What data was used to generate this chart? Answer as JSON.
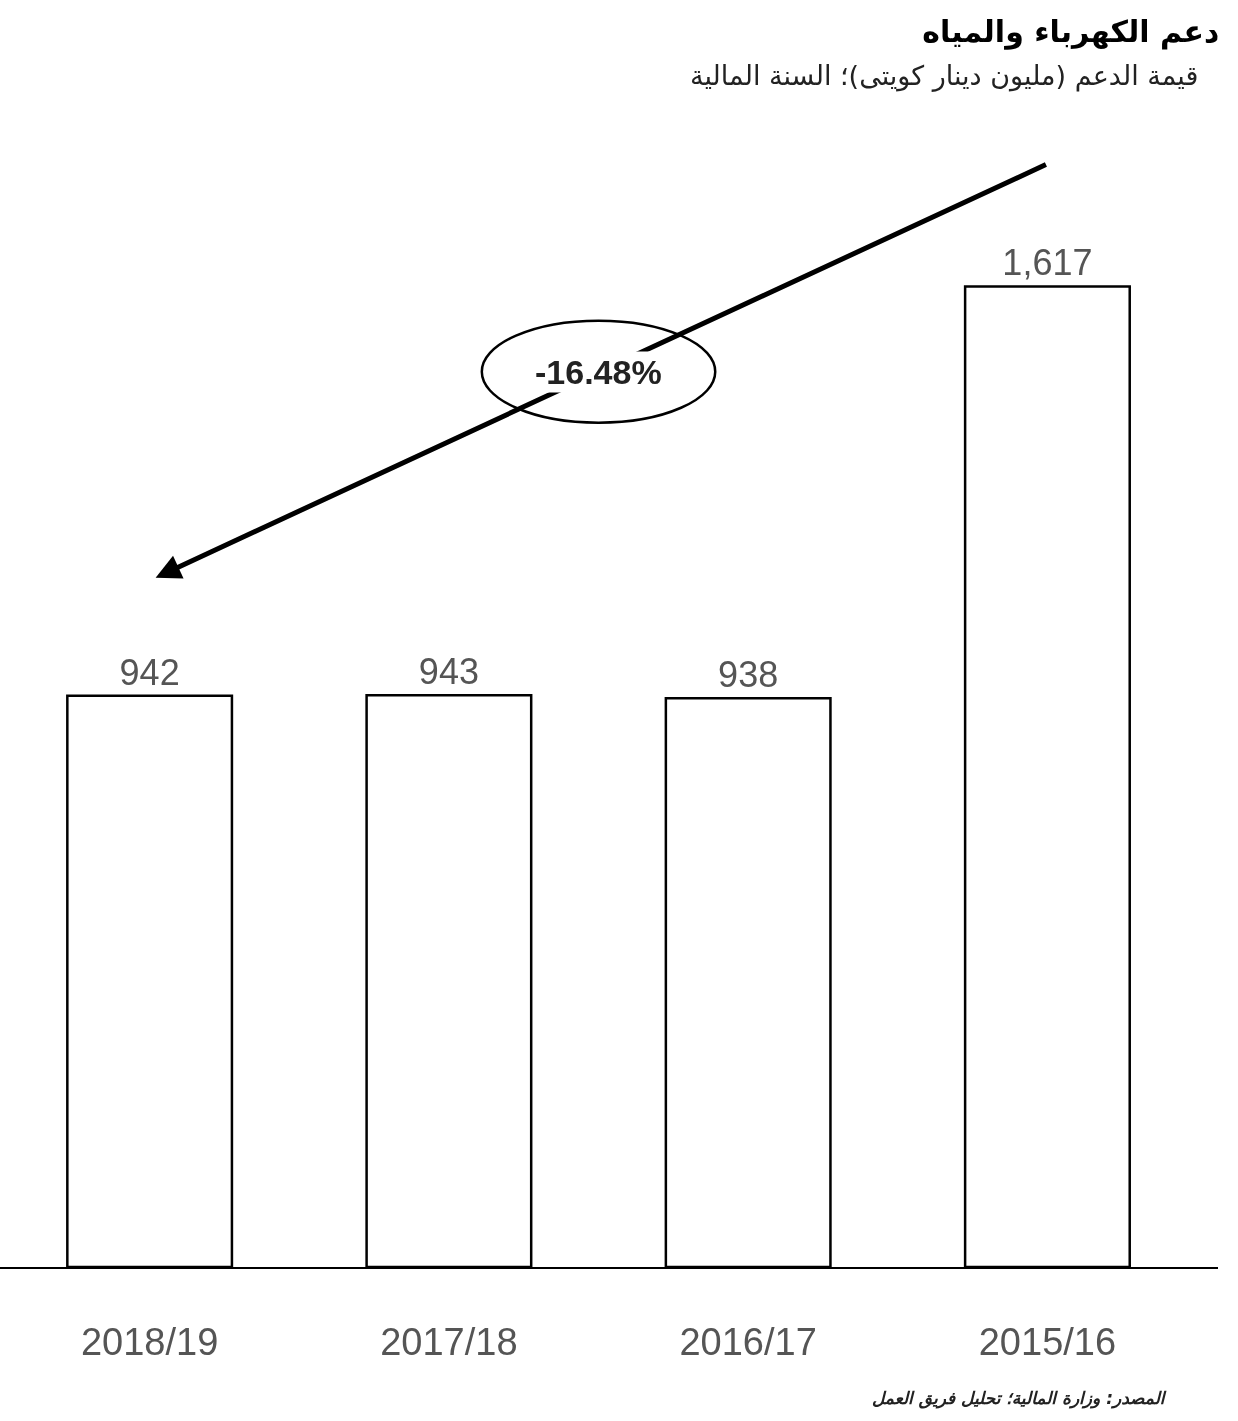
{
  "chart_data": {
    "type": "bar",
    "title": "دعم الكهرباء والمياه",
    "subtitle": "قيمة الدعم (مليون دينار كويتى)؛ السنة المالية",
    "categories": [
      "2018/19",
      "2017/18",
      "2016/17",
      "2015/16"
    ],
    "values": [
      942,
      943,
      938,
      1617
    ],
    "color": "#ffffff",
    "value_labels": [
      "942",
      "943",
      "938",
      "1,617"
    ],
    "annotations": [
      "-16.48%",
      "المصدر: وزارة المالية؛ تحليل فريق العمل"
    ]
  }
}
